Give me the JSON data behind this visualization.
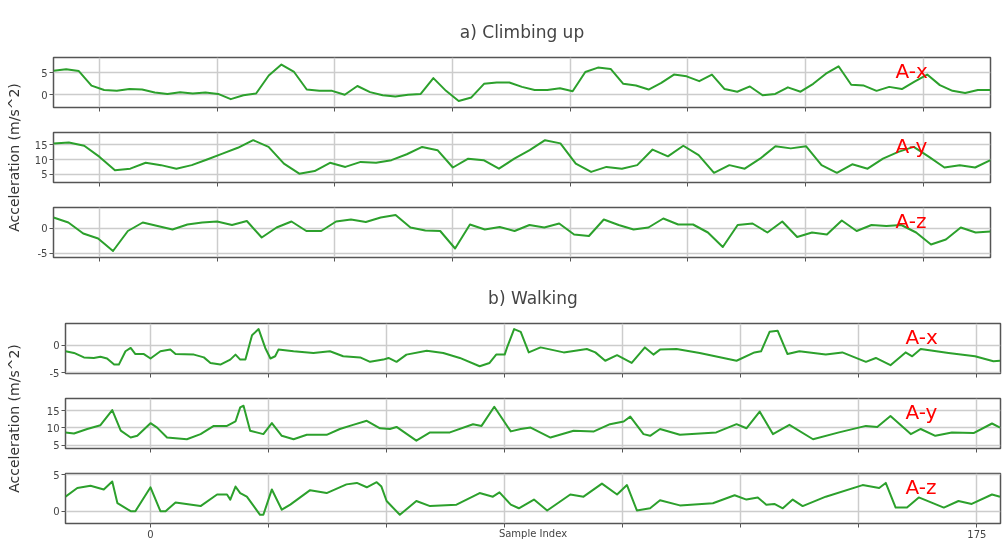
{
  "chart_data": [
    {
      "type": "line",
      "title": "a) Climbing up",
      "annotations": [
        "A-x"
      ],
      "grid": true,
      "tick_labels": "y",
      "ylim": [
        -2.9,
        8.5
      ],
      "yticks": [
        0,
        5
      ],
      "categories": [
        null,
        null,
        null,
        null,
        null,
        null,
        null,
        null,
        null,
        null,
        null,
        null,
        null,
        null,
        null,
        null,
        null,
        null,
        null,
        null,
        null,
        null,
        null,
        null,
        null,
        null,
        null,
        null,
        null,
        null,
        null,
        null,
        null,
        null,
        null,
        null,
        null,
        null,
        null,
        null,
        null,
        null,
        null,
        null,
        null,
        null,
        null,
        null,
        null,
        null,
        null,
        null,
        null,
        null,
        null,
        null,
        null,
        null,
        null,
        null,
        null,
        null,
        null,
        null,
        null,
        null,
        null,
        null,
        null,
        null,
        null,
        null,
        null,
        null,
        null
      ],
      "series": [
        {
          "color": "#2ca02c",
          "values": [
            5.5,
            5.8,
            5.4,
            2.1,
            1.1,
            0.9,
            1.3,
            1.2,
            0.5,
            0.2,
            0.6,
            0.3,
            0.5,
            0.2,
            -1.0,
            -0.1,
            0.3,
            4.4,
            6.9,
            5.2,
            1.2,
            0.9,
            0.9,
            0,
            2.0,
            0.6,
            -0.1,
            -0.4,
            0,
            0.2,
            3.8,
            0.9,
            -1.4,
            -0.6,
            2.5,
            2.8,
            2.8,
            1.8,
            1.1,
            1.1,
            1.5,
            0.8,
            5.2,
            6.2,
            5.9,
            2.5,
            2.1,
            1.2,
            2.7,
            4.6,
            4.2,
            3.1,
            4.6,
            1.3,
            0.7,
            1.9,
            -0.1,
            0.2,
            1.7,
            0.7,
            2.5,
            4.8,
            6.5,
            2.3,
            2.1,
            0.9,
            1.8,
            1.3,
            3.0,
            4.6,
            2.2,
            0.9,
            0.4,
            1.1,
            1.1
          ]
        }
      ]
    },
    {
      "type": "line",
      "ylabel": "Acceleration (m/s^2)",
      "annotations": [
        "A-y"
      ],
      "grid": true,
      "tick_labels": "y",
      "ylim": [
        2.2,
        19.2
      ],
      "yticks": [
        5,
        10,
        15
      ],
      "categories": [
        null,
        null,
        null,
        null,
        null,
        null,
        null,
        null,
        null,
        null,
        null,
        null,
        null,
        null,
        null,
        null,
        null,
        null,
        null,
        null,
        null,
        null,
        null,
        null,
        null,
        null,
        null,
        null,
        null,
        null,
        null,
        null,
        null,
        null,
        null,
        null,
        null,
        null,
        null,
        null,
        null,
        null,
        null,
        null,
        null,
        null,
        null,
        null,
        null,
        null,
        null,
        null,
        null,
        null,
        null,
        null,
        null,
        null,
        null,
        null,
        null,
        null
      ],
      "series": [
        {
          "color": "#2ca02c",
          "values": [
            15.5,
            15.8,
            14.7,
            10.9,
            6.4,
            6.9,
            8.9,
            8.1,
            6.9,
            8.1,
            10.0,
            12.0,
            14.0,
            16.6,
            14.3,
            8.6,
            5.2,
            6.1,
            8.9,
            7.5,
            9.2,
            8.9,
            9.8,
            11.8,
            14.3,
            13.2,
            7.3,
            10.3,
            9.8,
            6.9,
            10.3,
            13.2,
            16.6,
            15.5,
            8.6,
            5.8,
            7.5,
            6.9,
            8.1,
            13.4,
            11.1,
            14.7,
            11.5,
            5.5,
            8.1,
            6.9,
            10.3,
            14.5,
            13.8,
            14.5,
            8.1,
            5.5,
            8.4,
            6.9,
            10.3,
            12.6,
            14.3,
            10.9,
            7.3,
            8.1,
            7.3,
            9.8
          ]
        }
      ]
    },
    {
      "type": "line",
      "annotations": [
        "A-z"
      ],
      "grid": true,
      "tick_labels": "y",
      "ylim": [
        -5.9,
        4.1
      ],
      "yticks": [
        -5,
        0
      ],
      "categories": [
        null,
        null,
        null,
        null,
        null,
        null,
        null,
        null,
        null,
        null,
        null,
        null,
        null,
        null,
        null,
        null,
        null,
        null,
        null,
        null,
        null,
        null,
        null,
        null,
        null,
        null,
        null,
        null,
        null,
        null,
        null,
        null,
        null,
        null,
        null,
        null,
        null,
        null,
        null,
        null,
        null,
        null,
        null,
        null,
        null,
        null,
        null,
        null,
        null,
        null,
        null,
        null,
        null,
        null,
        null,
        null,
        null,
        null,
        null,
        null,
        null,
        null,
        null,
        null
      ],
      "series": [
        {
          "color": "#2ca02c",
          "values": [
            2.1,
            1.1,
            -1.1,
            -2.1,
            -4.6,
            -0.6,
            1.1,
            0.4,
            -0.3,
            0.7,
            1.1,
            1.3,
            0.6,
            1.4,
            -1.9,
            0.1,
            1.3,
            -0.6,
            -0.6,
            1.3,
            1.7,
            1.2,
            2.1,
            2.6,
            0.1,
            -0.5,
            -0.6,
            -4.1,
            0.7,
            -0.3,
            0.2,
            -0.6,
            0.6,
            0.1,
            0.9,
            -1.3,
            -1.6,
            1.7,
            0.6,
            -0.3,
            0.1,
            1.9,
            0.7,
            0.7,
            -0.9,
            -3.8,
            0.6,
            0.9,
            -0.9,
            1.3,
            -1.8,
            -0.9,
            -1.3,
            1.5,
            -0.6,
            0.6,
            0.4,
            0.6,
            -0.9,
            -3.3,
            -2.3,
            0.1,
            -0.9,
            -0.7
          ]
        }
      ]
    },
    {
      "type": "line",
      "title": "b) Walking",
      "annotations": [
        "A-x"
      ],
      "grid": true,
      "tick_labels": "y",
      "xlim": [
        -18,
        180
      ],
      "ylim": [
        -5.1,
        3.9
      ],
      "yticks": [
        -5,
        0
      ],
      "xticks": [
        {
          "value": 0,
          "label": null
        },
        {
          "value": 25,
          "label": null
        },
        {
          "value": 50,
          "label": null
        },
        {
          "value": 75,
          "label": null
        },
        {
          "value": 100,
          "label": null
        },
        {
          "value": 125,
          "label": null
        },
        {
          "value": 150,
          "label": null
        },
        {
          "value": 175,
          "label": null
        }
      ],
      "x": [
        -18.0,
        -16.2,
        -14.1,
        -12.0,
        -10.6,
        -9.2,
        -7.7,
        -6.7,
        -5.3,
        -4.2,
        -3.2,
        -1.4,
        0,
        2.1,
        4.2,
        5.3,
        9.2,
        11.3,
        12.7,
        14.8,
        16.9,
        18.0,
        19.0,
        20.1,
        21.5,
        22.9,
        24.3,
        25.4,
        26.4,
        27.1,
        30.3,
        34.5,
        38.0,
        40.8,
        44.4,
        46.5,
        49.3,
        50.4,
        52.1,
        54.2,
        58.5,
        62.0,
        65.5,
        69.7,
        71.8,
        73.2,
        75.0,
        75.6,
        77.0,
        78.4,
        80.1,
        82.6,
        87.5,
        92.4,
        94.2,
        96.3,
        98.8,
        101.9,
        104.7,
        106.5,
        107.9,
        111.4,
        116.3,
        124.1,
        127.9,
        129.3,
        131.1,
        132.8,
        134.9,
        137.4,
        143.0,
        146.5,
        151.5,
        153.6,
        156.7,
        159.9,
        161.3,
        163.1,
        169.0,
        174.6,
        178.5,
        179.9
      ],
      "series": [
        {
          "color": "#2ca02c",
          "values": [
            -1.1,
            -1.4,
            -2.2,
            -2.3,
            -2.1,
            -2.4,
            -3.5,
            -3.5,
            -1.1,
            -0.5,
            -1.6,
            -1.6,
            -2.4,
            -1.1,
            -0.8,
            -1.6,
            -1.7,
            -2.2,
            -3.2,
            -3.5,
            -2.6,
            -1.7,
            -2.6,
            -2.6,
            1.8,
            2.9,
            -0.5,
            -2.4,
            -2.0,
            -0.8,
            -1.1,
            -1.4,
            -1.1,
            -2.0,
            -2.2,
            -3.0,
            -2.6,
            -2.3,
            -3.0,
            -1.7,
            -1.0,
            -1.4,
            -2.3,
            -3.8,
            -3.2,
            -1.7,
            -1.7,
            -0.2,
            2.9,
            2.4,
            -1.3,
            -0.4,
            -1.3,
            -0.7,
            -1.3,
            -2.8,
            -1.8,
            -3.2,
            -0.4,
            -1.7,
            -0.8,
            -0.7,
            -1.4,
            -2.8,
            -1.3,
            -1.1,
            2.4,
            2.6,
            -1.6,
            -1.1,
            -1.7,
            -1.3,
            -3.0,
            -2.3,
            -3.6,
            -1.3,
            -2.0,
            -0.7,
            -1.4,
            -2.0,
            -2.9,
            -2.8
          ]
        }
      ]
    },
    {
      "type": "line",
      "ylabel": "Acceleration (m/s^2)",
      "annotations": [
        "A-y"
      ],
      "grid": true,
      "tick_labels": "y",
      "xlim": [
        -18,
        180
      ],
      "ylim": [
        4.0,
        18.6
      ],
      "yticks": [
        5,
        10,
        15
      ],
      "xticks": [
        {
          "value": 0,
          "label": null
        },
        {
          "value": 25,
          "label": null
        },
        {
          "value": 50,
          "label": null
        },
        {
          "value": 75,
          "label": null
        },
        {
          "value": 100,
          "label": null
        },
        {
          "value": 125,
          "label": null
        },
        {
          "value": 150,
          "label": null
        },
        {
          "value": 175,
          "label": null
        }
      ],
      "x": [
        -18.0,
        -16.2,
        -13.4,
        -10.6,
        -8.1,
        -6.3,
        -4.2,
        -2.8,
        0,
        1.4,
        3.5,
        7.7,
        10.6,
        13.4,
        16.2,
        18.0,
        19.0,
        19.7,
        21.1,
        23.9,
        25.7,
        27.8,
        30.3,
        33.1,
        37.3,
        40.1,
        42.9,
        45.8,
        48.6,
        50.7,
        52.1,
        56.3,
        59.2,
        63.4,
        68.3,
        70.1,
        72.8,
        76.3,
        78.4,
        80.5,
        84.7,
        89.6,
        93.9,
        97.3,
        100.2,
        101.6,
        104.4,
        105.8,
        107.9,
        112.1,
        119.8,
        124.1,
        126.2,
        129.0,
        131.8,
        135.3,
        140.3,
        145.8,
        151.5,
        153.9,
        156.7,
        161.0,
        163.1,
        166.2,
        169.7,
        174.3,
        178.2,
        179.9
      ],
      "series": [
        {
          "color": "#2ca02c",
          "values": [
            8.7,
            8.4,
            9.7,
            10.8,
            15.2,
            9.2,
            7.2,
            7.7,
            11.4,
            10.1,
            7.2,
            6.7,
            8.2,
            10.6,
            10.6,
            11.9,
            16.0,
            16.5,
            9.2,
            8.2,
            11.4,
            7.7,
            6.7,
            8.0,
            8.0,
            9.7,
            10.9,
            12.1,
            9.9,
            9.7,
            10.3,
            6.3,
            8.7,
            8.7,
            11.1,
            10.6,
            16.2,
            9.0,
            9.7,
            10.1,
            7.2,
            9.2,
            9.0,
            11.1,
            11.9,
            13.3,
            8.2,
            7.7,
            9.7,
            8.0,
            8.7,
            11.1,
            9.9,
            14.8,
            8.2,
            10.9,
            6.7,
            8.7,
            10.6,
            10.3,
            13.5,
            8.2,
            9.7,
            7.7,
            8.7,
            8.5,
            11.3,
            10.1
          ]
        }
      ]
    },
    {
      "type": "line",
      "xlabel": "Sample Index",
      "annotations": [
        "A-z"
      ],
      "grid": true,
      "xlim": [
        -18,
        180
      ],
      "ylim": [
        -1.7,
        5.2
      ],
      "yticks": [
        0,
        5
      ],
      "xticks": [
        0,
        {
          "value": 25,
          "label": null
        },
        {
          "value": 50,
          "label": null
        },
        {
          "value": 75,
          "label": null
        },
        {
          "value": 100,
          "label": null
        },
        {
          "value": 125,
          "label": null
        },
        {
          "value": 150,
          "label": null
        },
        175
      ],
      "x": [
        -18.0,
        -15.5,
        -12.7,
        -9.9,
        -8.1,
        -7.0,
        -4.2,
        -3.2,
        0,
        2.1,
        3.2,
        5.3,
        10.6,
        14.1,
        16.2,
        16.9,
        18.0,
        19.0,
        20.4,
        23.2,
        23.9,
        25.7,
        27.8,
        29.6,
        33.8,
        37.3,
        41.5,
        43.7,
        45.8,
        47.9,
        48.9,
        50.0,
        52.8,
        56.3,
        59.2,
        64.8,
        69.7,
        72.5,
        73.9,
        76.3,
        78.0,
        81.2,
        84.0,
        88.9,
        91.7,
        95.6,
        98.8,
        100.9,
        103.0,
        105.8,
        107.9,
        112.1,
        119.1,
        123.7,
        126.2,
        128.6,
        130.4,
        132.1,
        133.9,
        136.0,
        138.1,
        143.0,
        150.8,
        154.3,
        155.7,
        157.8,
        160.2,
        162.7,
        168.0,
        171.1,
        173.9,
        178.2,
        179.9
      ],
      "series": [
        {
          "color": "#2ca02c",
          "values": [
            2.0,
            3.2,
            3.5,
            3.0,
            4.1,
            1.1,
            0,
            0,
            3.3,
            0,
            0,
            1.2,
            0.7,
            2.3,
            2.3,
            1.6,
            3.4,
            2.5,
            2.0,
            -0.5,
            -0.5,
            3.0,
            0.2,
            0.9,
            2.9,
            2.5,
            3.7,
            3.9,
            3.3,
            4.0,
            3.4,
            1.4,
            -0.5,
            1.4,
            0.7,
            0.9,
            2.5,
            2.0,
            2.6,
            0.9,
            0.4,
            1.6,
            0.1,
            2.3,
            2.0,
            3.8,
            2.3,
            3.6,
            0.1,
            0.4,
            1.5,
            0.8,
            1.1,
            2.2,
            1.6,
            1.9,
            0.9,
            1.0,
            0.4,
            1.6,
            0.7,
            2.0,
            3.6,
            3.2,
            3.9,
            0.5,
            0.5,
            1.9,
            0.5,
            1.4,
            1.0,
            2.3,
            2.0
          ]
        }
      ]
    }
  ]
}
